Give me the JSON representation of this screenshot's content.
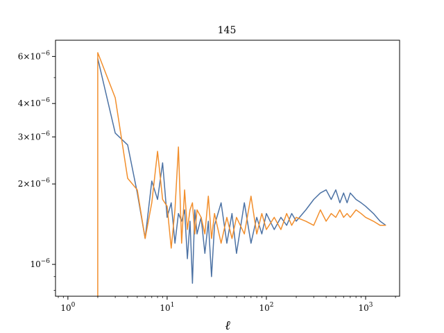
{
  "chart_data": {
    "type": "line",
    "title": "145",
    "xlabel": "ℓ",
    "ylabel": "",
    "xscale": "log",
    "yscale": "log",
    "xlim": [
      0.75,
      2200
    ],
    "ylim": [
      7.6e-07,
      6.9e-06
    ],
    "grid": false,
    "legend": "none",
    "x_ticks": [
      {
        "value": 1,
        "base": "10",
        "exp": "0"
      },
      {
        "value": 10,
        "base": "10",
        "exp": "1"
      },
      {
        "value": 100,
        "base": "10",
        "exp": "2"
      },
      {
        "value": 1000,
        "base": "10",
        "exp": "3"
      }
    ],
    "y_ticks": [
      {
        "value": 1e-06,
        "mant": "",
        "base": "10",
        "exp": "−6"
      },
      {
        "value": 2e-06,
        "mant": "2×",
        "base": "10",
        "exp": "−6"
      },
      {
        "value": 3e-06,
        "mant": "3×",
        "base": "10",
        "exp": "−6"
      },
      {
        "value": 4e-06,
        "mant": "4×",
        "base": "10",
        "exp": "−6"
      },
      {
        "value": 6e-06,
        "mant": "6×",
        "base": "10",
        "exp": "−6"
      }
    ],
    "series": [
      {
        "color": "#4c72a4",
        "x": [
          2,
          3,
          4,
          5,
          6,
          7,
          8,
          9,
          10,
          11,
          12,
          13,
          14,
          15,
          16,
          17,
          18,
          19,
          20,
          22,
          24,
          26,
          28,
          30,
          35,
          40,
          45,
          50,
          60,
          70,
          80,
          90,
          100,
          120,
          140,
          160,
          180,
          200,
          250,
          300,
          350,
          400,
          450,
          500,
          550,
          600,
          650,
          700,
          800,
          900,
          1000,
          1200,
          1400,
          1600
        ],
        "y": [
          5.9e-06,
          3.1e-06,
          2.8e-06,
          1.85e-06,
          1.25e-06,
          2.05e-06,
          1.75e-06,
          2.4e-06,
          1.5e-06,
          1.7e-06,
          1.2e-06,
          1.55e-06,
          1.45e-06,
          1.6e-06,
          1.05e-06,
          1.45e-06,
          8.5e-07,
          1.6e-06,
          1.3e-06,
          1.5e-06,
          1.1e-06,
          1.45e-06,
          9e-07,
          1.4e-06,
          1.7e-06,
          1.2e-06,
          1.55e-06,
          1.1e-06,
          1.7e-06,
          1.2e-06,
          1.5e-06,
          1.3e-06,
          1.55e-06,
          1.35e-06,
          1.5e-06,
          1.4e-06,
          1.55e-06,
          1.45e-06,
          1.6e-06,
          1.75e-06,
          1.85e-06,
          1.9e-06,
          1.75e-06,
          1.9e-06,
          1.7e-06,
          1.85e-06,
          1.7e-06,
          1.85e-06,
          1.75e-06,
          1.7e-06,
          1.65e-06,
          1.55e-06,
          1.45e-06,
          1.4e-06
        ]
      },
      {
        "color": "#f28e2b",
        "x": [
          2,
          2,
          3,
          4,
          5,
          6,
          7,
          8,
          9,
          10,
          11,
          12,
          13,
          14,
          15,
          16,
          17,
          18,
          19,
          20,
          22,
          24,
          26,
          28,
          30,
          35,
          40,
          45,
          50,
          60,
          70,
          80,
          90,
          100,
          120,
          140,
          160,
          180,
          200,
          250,
          300,
          350,
          400,
          450,
          500,
          550,
          600,
          650,
          700,
          800,
          900,
          1000,
          1200,
          1400,
          1600
        ],
        "y": [
          7.6e-07,
          6.2e-06,
          4.2e-06,
          2.1e-06,
          1.9e-06,
          1.25e-06,
          1.7e-06,
          2.65e-06,
          1.75e-06,
          1.65e-06,
          1.15e-06,
          1.6e-06,
          2.75e-06,
          1.2e-06,
          1.9e-06,
          1.35e-06,
          1.6e-06,
          1.7e-06,
          1.3e-06,
          1.6e-06,
          1.5e-06,
          1.3e-06,
          1.8e-06,
          1.25e-06,
          1.55e-06,
          1.2e-06,
          1.5e-06,
          1.25e-06,
          1.5e-06,
          1.3e-06,
          1.8e-06,
          1.3e-06,
          1.55e-06,
          1.35e-06,
          1.5e-06,
          1.35e-06,
          1.55e-06,
          1.4e-06,
          1.5e-06,
          1.45e-06,
          1.4e-06,
          1.6e-06,
          1.45e-06,
          1.55e-06,
          1.5e-06,
          1.6e-06,
          1.5e-06,
          1.55e-06,
          1.5e-06,
          1.6e-06,
          1.55e-06,
          1.5e-06,
          1.45e-06,
          1.4e-06,
          1.4e-06
        ]
      }
    ]
  }
}
